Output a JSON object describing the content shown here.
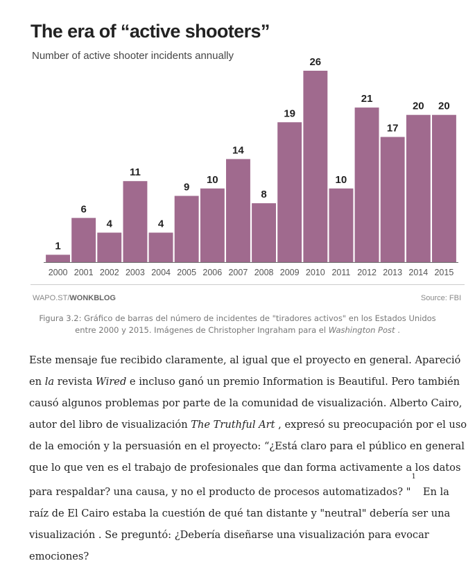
{
  "chart_data": {
    "type": "bar",
    "title": "The era of “active shooters”",
    "subtitle": "Number of active shooter incidents annually",
    "categories": [
      "2000",
      "2001",
      "2002",
      "2003",
      "2004",
      "2005",
      "2006",
      "2007",
      "2008",
      "2009",
      "2010",
      "2011",
      "2012",
      "2013",
      "2014",
      "2015"
    ],
    "values": [
      1,
      6,
      4,
      11,
      4,
      9,
      10,
      14,
      8,
      19,
      26,
      10,
      21,
      17,
      20,
      20
    ],
    "xlabel": "",
    "ylabel": "",
    "ylim": [
      0,
      26
    ],
    "grid": false,
    "bar_color": "#a06a8e"
  },
  "credit": {
    "prefix": "WAPO.ST/",
    "brand": "WONKBLOG",
    "source": "Source: FBI"
  },
  "caption": {
    "before": "Figura 3.2: Gráfico de barras del número de incidentes de \"tiradores activos\" en los Estados Unidos entre 2000 y 2015. Imágenes de Christopher Ingraham para el ",
    "italic": "Washington Post",
    "after": " ."
  },
  "body": {
    "s1": "Este mensaje fue recibido claramente, al igual que el proyecto en general. Apareció en ",
    "i1": "la",
    "s2": " revista ",
    "i2": "Wired",
    "s3": " e incluso ganó un premio Information is Beautiful. Pero también causó algunos problemas por parte de la comunidad de visualización. Alberto Cairo, autor del libro de visualización ",
    "i3": "The Truthful Art",
    "s4": " , expresó su preocupación por el uso de la emoción y la persuasión en el proyecto: “¿Está claro para el público en general que lo que ven es el trabajo de profesionales que dan forma activamente a los datos para respaldar? una causa, y no el producto de procesos automatizados? \"",
    "footnote": "1",
    "s5": "En la raíz de El Cairo estaba la cuestión de qué tan distante y \"neutral\" debería ser una visualización . Se preguntó: ¿Debería diseñarse una visualización para evocar emociones?"
  }
}
